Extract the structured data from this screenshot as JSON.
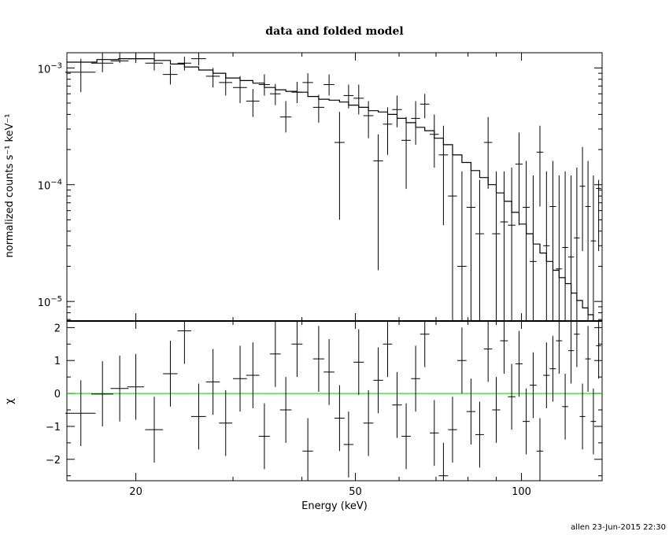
{
  "chart_data": [
    {
      "type": "scatter",
      "title": "data and folded model",
      "ylabel": "normalized counts s⁻¹ keV⁻¹",
      "xscale": "log",
      "yscale": "log",
      "xlim": [
        15,
        140
      ],
      "ylim": [
        6.8e-06,
        0.00135
      ],
      "yticks": [
        {
          "value": 0.001,
          "mant": "10",
          "exp": "−3"
        },
        {
          "value": 0.0001,
          "mant": "10",
          "exp": "−4"
        },
        {
          "value": 1e-05,
          "mant": "10",
          "exp": "−5"
        }
      ],
      "series": [
        {
          "role": "data",
          "color": "#000000",
          "x": [
            15.9,
            17.4,
            18.7,
            20.0,
            21.6,
            23.1,
            24.5,
            26.0,
            27.6,
            29.1,
            30.9,
            32.6,
            34.2,
            35.8,
            37.4,
            39.2,
            41.0,
            42.9,
            44.8,
            46.8,
            48.6,
            50.7,
            52.8,
            55.0,
            57.2,
            59.5,
            61.8,
            64.3,
            66.8,
            69.5,
            72.2,
            75.0,
            78.0,
            81.0,
            84.0,
            87.0,
            90.0,
            93.0,
            96.0,
            99.0,
            102.0,
            105.0,
            108.0,
            111.0,
            114.0,
            117.0,
            120.0,
            123.0,
            126.0,
            129.0,
            132.0,
            135.0,
            138.0
          ],
          "xerr": [
            1.0,
            0.8,
            0.7,
            0.7,
            0.8,
            0.7,
            0.7,
            0.8,
            0.8,
            0.8,
            0.9,
            0.9,
            0.8,
            0.8,
            0.9,
            0.9,
            0.9,
            1.0,
            1.0,
            1.0,
            1.0,
            1.1,
            1.1,
            1.1,
            1.1,
            1.2,
            1.2,
            1.2,
            1.3,
            1.3,
            1.4,
            1.4,
            1.5,
            1.5,
            1.5,
            1.5,
            1.5,
            1.5,
            1.5,
            1.5,
            1.5,
            1.5,
            1.5,
            1.5,
            1.5,
            1.5,
            1.5,
            1.5,
            1.5,
            1.5,
            1.5,
            1.5,
            1.5
          ],
          "y": [
            0.00092,
            0.0011,
            0.00115,
            0.0012,
            0.0011,
            0.00088,
            0.0011,
            0.0012,
            0.00085,
            0.00075,
            0.00068,
            0.00052,
            0.00072,
            0.0006,
            0.00038,
            0.00062,
            0.00075,
            0.00046,
            0.00072,
            0.00023,
            0.00058,
            0.00055,
            0.00039,
            0.00016,
            0.00033,
            0.00044,
            0.00024,
            0.00037,
            0.00049,
            0.00027,
            0.00018,
            8e-05,
            2e-05,
            6.4e-05,
            3.8e-05,
            0.00023,
            3.8e-05,
            4.8e-05,
            4.5e-05,
            0.00015,
            6.4e-05,
            2.2e-05,
            0.00019,
            3e-05,
            6.5e-05,
            1.9e-05,
            2.9e-05,
            2.4e-05,
            3.5e-05,
            9.7e-05,
            6.5e-05,
            3.3e-05,
            9.3e-05
          ],
          "ylow": [
            0.00062,
            0.00092,
            0.0011,
            0.0011,
            0.00095,
            0.00072,
            0.00095,
            0.00105,
            0.00068,
            0.00058,
            0.0005,
            0.00038,
            0.00058,
            0.00048,
            0.00028,
            0.0005,
            0.0006,
            0.00034,
            0.00058,
            5e-05,
            0.00045,
            0.0004,
            0.00025,
            1.85e-05,
            0.00018,
            0.00031,
            9.2e-05,
            0.00022,
            0.00037,
            0.00014,
            4.5e-05,
            6.8e-06,
            6.8e-06,
            6.8e-06,
            6.8e-06,
            9.2e-05,
            6.8e-06,
            6.8e-06,
            6.8e-06,
            4.5e-05,
            6.8e-06,
            6.8e-06,
            6.5e-05,
            6.8e-06,
            6.8e-06,
            6.8e-06,
            6.8e-06,
            6.8e-06,
            6.8e-06,
            2.7e-05,
            6.8e-06,
            6.8e-06,
            2.7e-05
          ],
          "yhigh": [
            0.0012,
            0.00135,
            0.00135,
            0.00135,
            0.00135,
            0.00105,
            0.00125,
            0.00135,
            0.001,
            0.0009,
            0.00085,
            0.00066,
            0.00088,
            0.00073,
            0.00052,
            0.00076,
            0.0009,
            0.00059,
            0.00088,
            0.00042,
            0.00072,
            0.00072,
            0.00052,
            0.00027,
            0.00046,
            0.00058,
            0.00038,
            0.00052,
            0.0006,
            0.0004,
            0.00032,
            0.00021,
            0.00013,
            0.00014,
            0.00011,
            0.00038,
            0.00013,
            0.00013,
            0.00014,
            0.00028,
            0.00016,
            0.00012,
            0.00032,
            0.00013,
            0.00016,
            0.00012,
            0.00013,
            0.00012,
            0.00014,
            0.00021,
            0.00016,
            0.00012,
            0.00011
          ]
        },
        {
          "role": "folded-model",
          "color": "#000000",
          "x": [
            15.0,
            17.0,
            18.6,
            20.0,
            21.6,
            23.1,
            24.5,
            26.0,
            27.6,
            29.1,
            30.9,
            32.6,
            34.2,
            35.8,
            37.4,
            39.2,
            41.0,
            42.9,
            44.8,
            46.8,
            48.6,
            50.7,
            52.8,
            55.0,
            57.2,
            59.5,
            61.8,
            64.3,
            66.8,
            69.5,
            72.2,
            75.0,
            78.0,
            81.0,
            84.0,
            87.0,
            90.0,
            93.0,
            96.0,
            99.0,
            102.0,
            105.0,
            108.0,
            111.0,
            114.0,
            117.0,
            120.0,
            123.0,
            126.0,
            129.0,
            132.0,
            135.0,
            138.0,
            140.0
          ],
          "y": [
            0.00112,
            0.00118,
            0.0012,
            0.0012,
            0.00116,
            0.00108,
            0.00102,
            0.00096,
            0.0009,
            0.00082,
            0.00078,
            0.00074,
            0.00068,
            0.00065,
            0.00063,
            0.00062,
            0.00057,
            0.00054,
            0.00053,
            0.00051,
            0.00048,
            0.00046,
            0.00043,
            0.00042,
            0.0004,
            0.00037,
            0.00034,
            0.00031,
            0.00029,
            0.00025,
            0.00022,
            0.00018,
            0.000155,
            0.000132,
            0.000115,
            0.0001,
            8.5e-05,
            7.2e-05,
            5.8e-05,
            4.6e-05,
            3.8e-05,
            3.1e-05,
            2.6e-05,
            2.2e-05,
            1.85e-05,
            1.6e-05,
            1.42e-05,
            1.18e-05,
            1.02e-05,
            8.8e-06,
            7.7e-06,
            6.8e-06,
            6.8e-06,
            6.8e-06
          ]
        }
      ]
    },
    {
      "type": "scatter",
      "xlabel": "Energy (keV)",
      "ylabel": "χ",
      "xscale": "log",
      "xlim": [
        15,
        140
      ],
      "ylim": [
        -2.65,
        2.2
      ],
      "xticks": [
        {
          "value": 20,
          "label": "20"
        },
        {
          "value": 50,
          "label": "50"
        },
        {
          "value": 100,
          "label": "100"
        }
      ],
      "yticks": [
        {
          "value": 2,
          "label": "2"
        },
        {
          "value": 1,
          "label": "1"
        },
        {
          "value": 0,
          "label": "0"
        },
        {
          "value": -1,
          "label": "−1"
        },
        {
          "value": -2,
          "label": "−2"
        }
      ],
      "zero_line_color": "#00cc00",
      "series": [
        {
          "role": "residuals",
          "color": "#000000",
          "x": [
            15.9,
            17.4,
            18.7,
            20.0,
            21.6,
            23.1,
            24.5,
            26.0,
            27.6,
            29.1,
            30.9,
            32.6,
            34.2,
            35.8,
            37.4,
            39.2,
            41.0,
            42.9,
            44.8,
            46.8,
            48.6,
            50.7,
            52.8,
            55.0,
            57.2,
            59.5,
            61.8,
            64.3,
            66.8,
            69.5,
            72.2,
            75.0,
            78.0,
            81.0,
            84.0,
            87.0,
            90.0,
            93.0,
            96.0,
            99.0,
            102.0,
            105.0,
            108.0,
            111.0,
            114.0,
            117.0,
            120.0,
            123.0,
            126.0,
            129.0,
            132.0,
            135.0,
            138.0
          ],
          "xerr": [
            1.0,
            0.8,
            0.7,
            0.7,
            0.8,
            0.7,
            0.7,
            0.8,
            0.8,
            0.8,
            0.9,
            0.9,
            0.8,
            0.8,
            0.9,
            0.9,
            0.9,
            1.0,
            1.0,
            1.0,
            1.0,
            1.1,
            1.1,
            1.1,
            1.1,
            1.2,
            1.2,
            1.2,
            1.3,
            1.3,
            1.4,
            1.4,
            1.5,
            1.5,
            1.5,
            1.5,
            1.5,
            1.5,
            1.5,
            1.5,
            1.5,
            1.5,
            1.5,
            1.5,
            1.5,
            1.5,
            1.5,
            1.5,
            1.5,
            1.5,
            1.5,
            1.5,
            1.5
          ],
          "y": [
            -0.6,
            -0.02,
            0.15,
            0.2,
            -1.1,
            0.6,
            1.9,
            -0.7,
            0.35,
            -0.9,
            0.45,
            0.55,
            -1.3,
            1.2,
            -0.5,
            1.5,
            -1.75,
            1.05,
            0.65,
            -0.75,
            -1.55,
            0.95,
            -0.9,
            0.4,
            1.5,
            -0.35,
            -1.3,
            0.45,
            1.8,
            -1.2,
            -2.5,
            -1.1,
            1.0,
            -0.55,
            -1.25,
            1.35,
            -0.5,
            1.6,
            -0.1,
            0.9,
            -0.85,
            0.25,
            -1.75,
            0.55,
            0.75,
            1.6,
            -0.4,
            1.3,
            1.8,
            -0.7,
            1.05,
            -0.85,
            1.45
          ],
          "ylow": [
            -1.6,
            -1.0,
            -0.85,
            -0.8,
            -2.1,
            -0.4,
            0.9,
            -1.7,
            -0.65,
            -1.9,
            -0.55,
            -0.45,
            -2.3,
            0.2,
            -1.5,
            0.5,
            -2.65,
            0.05,
            -0.35,
            -1.75,
            -2.55,
            -0.05,
            -1.9,
            -0.6,
            0.5,
            -1.35,
            -2.3,
            -0.55,
            0.8,
            -2.2,
            -2.65,
            -2.1,
            0.0,
            -1.55,
            -2.25,
            0.35,
            -1.5,
            0.6,
            -1.1,
            -0.1,
            -1.85,
            -0.75,
            -2.65,
            -0.45,
            -0.25,
            0.6,
            -1.4,
            0.3,
            0.8,
            -1.7,
            0.05,
            -1.85,
            0.45
          ],
          "yhigh": [
            0.4,
            0.98,
            1.15,
            1.2,
            -0.1,
            1.6,
            2.2,
            0.3,
            1.35,
            0.1,
            1.45,
            1.55,
            -0.3,
            2.2,
            0.5,
            2.2,
            -0.75,
            2.05,
            1.65,
            0.25,
            -0.55,
            1.95,
            0.1,
            1.4,
            2.2,
            0.65,
            -0.3,
            1.45,
            2.2,
            -0.2,
            -1.5,
            -0.1,
            2.0,
            0.45,
            -0.25,
            2.2,
            0.5,
            2.2,
            0.9,
            1.9,
            0.15,
            1.25,
            -0.75,
            1.55,
            1.75,
            2.2,
            0.6,
            2.2,
            2.2,
            0.3,
            2.05,
            0.15,
            2.2
          ]
        }
      ]
    }
  ],
  "footer": {
    "stamp": "allen 23-Jun-2015 22:30"
  }
}
